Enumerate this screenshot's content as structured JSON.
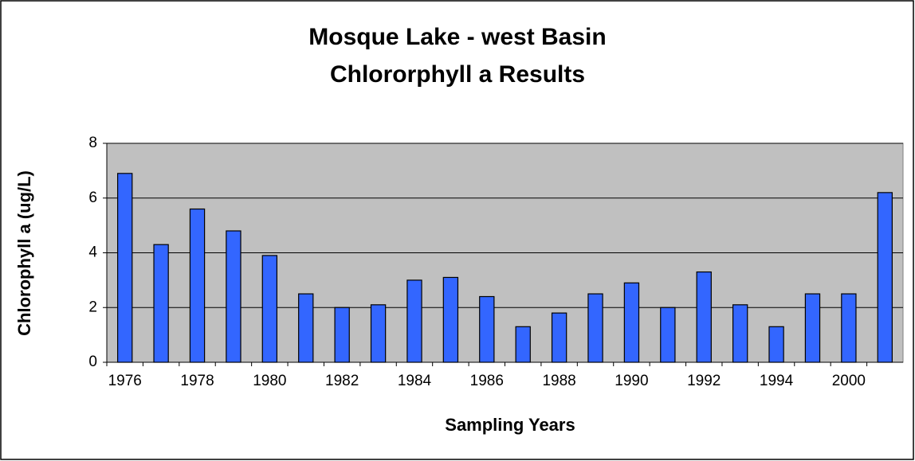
{
  "chart_data": {
    "type": "bar",
    "title": [
      "Mosque Lake - west Basin",
      "Chlororphyll a Results"
    ],
    "xlabel": "Sampling Years",
    "ylabel": "Chlorophyll a (ug/L)",
    "categories": [
      "1976",
      null,
      "1978",
      null,
      "1980",
      null,
      "1982",
      null,
      "1984",
      null,
      "1986",
      null,
      "1988",
      null,
      "1990",
      null,
      "1992",
      null,
      "1994",
      null,
      "2000",
      null
    ],
    "values": [
      6.9,
      4.3,
      5.6,
      4.8,
      3.9,
      2.5,
      2.0,
      2.1,
      3.0,
      3.1,
      2.4,
      1.3,
      1.8,
      2.5,
      2.9,
      2.0,
      3.3,
      2.1,
      1.3,
      2.5,
      2.5,
      6.2
    ],
    "color": "#3366ff",
    "ylim": [
      0,
      8
    ],
    "yticks": [
      0,
      2,
      4,
      6,
      8
    ],
    "grid": true
  }
}
